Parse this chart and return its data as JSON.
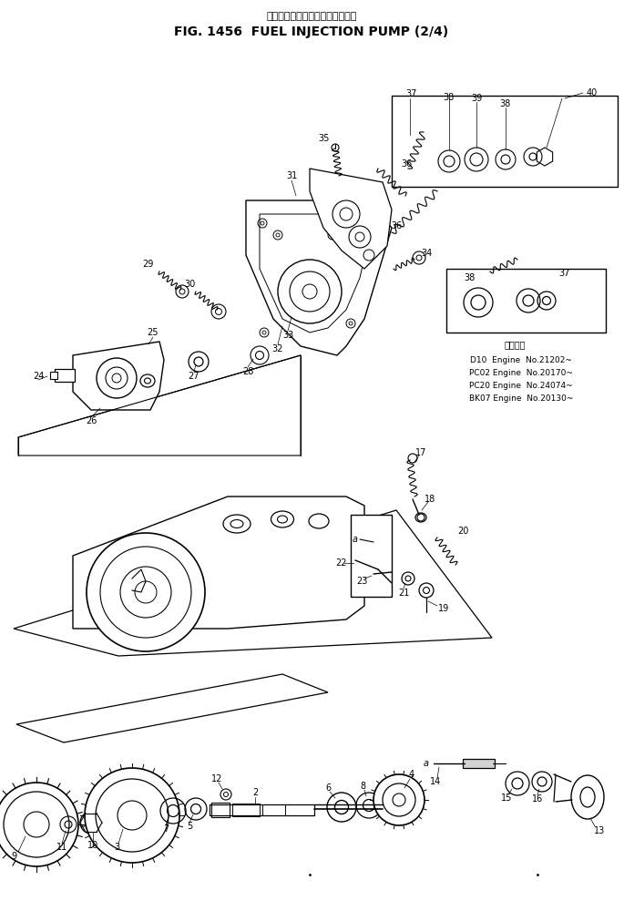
{
  "title_japanese": "フェエルインジェクションポンプ",
  "title_english": "FIG. 1456  FUEL INJECTION PUMP (2/4)",
  "background_color": "#ffffff",
  "line_color": "#000000",
  "fig_width": 6.85,
  "fig_height": 9.89,
  "dpi": 100,
  "applicability_header": "適用号機",
  "applicability_lines": [
    "D10  Engine  No.21202~",
    "PC02 Engine  No.20170~",
    "PC20 Engine  No.24074~",
    "BK07 Engine  No.20130~"
  ]
}
